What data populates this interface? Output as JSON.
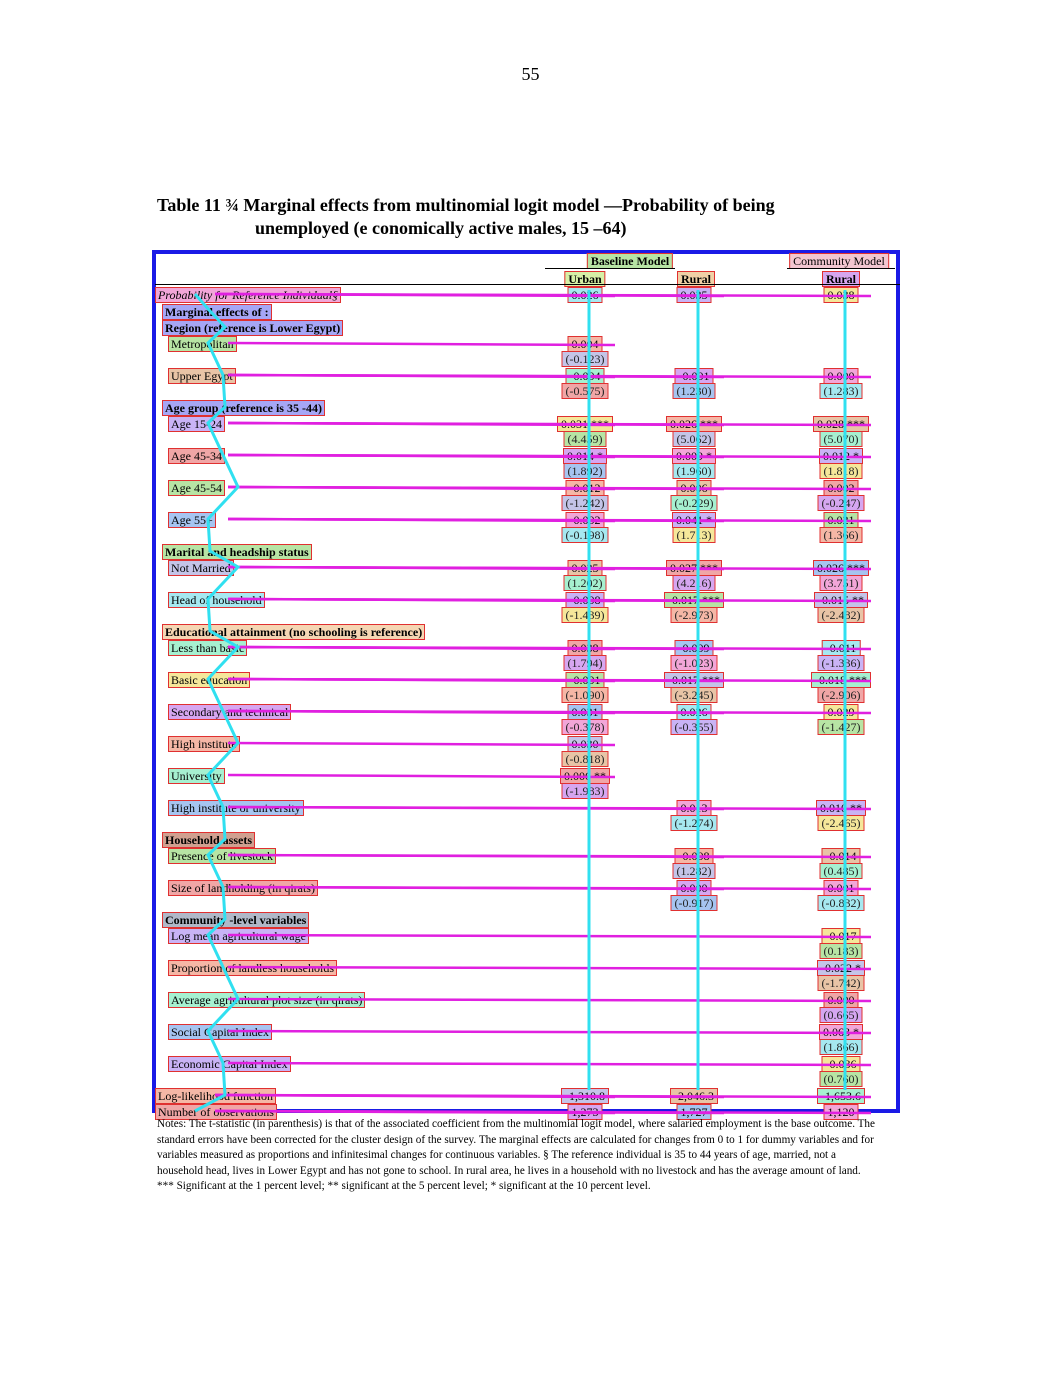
{
  "page_number": "55",
  "caption": {
    "line1": "Table 11 ¾ Marginal effects from multinomial logit model    —Probability of being",
    "line2": "unemployed (e conomically active males, 15  –64)"
  },
  "header": {
    "baseline_model": "Baseline Model",
    "community_model": "Community Model",
    "urban": "Urban",
    "rural": "Rural",
    "rural2": "Rural"
  },
  "rows": [
    {
      "label": "Probability for Reference Individual§",
      "style": "ital",
      "urban": "0.026",
      "rural": "0.035",
      "comm": "0.038"
    },
    {
      "label": "Marginal effects of :",
      "style": "sec-purple"
    },
    {
      "label": "  Region (reference is Lower Egypt)",
      "style": "sec-purple"
    },
    {
      "label": "Metropolitan",
      "indent": true,
      "urban": "0.004",
      "urban_se": "(-0.123)"
    },
    {
      "label": "Upper Egypt",
      "indent": true,
      "urban": "-0.004",
      "urban_se": "(-0.575)",
      "rural": "-0.001",
      "rural_se": "(1.230)",
      "comm": "0.000",
      "comm_se": "(1.283)"
    },
    {
      "label": "Age group (reference is 35  -44)",
      "style": "sec-purple"
    },
    {
      "label": "Age 15-24",
      "indent": true,
      "urban": "0.031  ***",
      "urban_se": "(4.459)",
      "rural": "0.026  ***",
      "rural_se": "(5.062)",
      "comm": "0.028  ***",
      "comm_se": "(5.070)"
    },
    {
      "label": "Age 45-34",
      "indent": true,
      "urban": "0.014  *",
      "urban_se": "(1.892)",
      "rural": "0.009  *",
      "rural_se": "(1.960)",
      "comm": "0.012  *",
      "comm_se": "(1.818)"
    },
    {
      "label": "Age 45-54",
      "indent": true,
      "urban": "-0.012",
      "urban_se": "(-1.242)",
      "rural": "0.006",
      "rural_se": "(-0.229)",
      "comm": "0.002",
      "comm_se": "(-0.247)"
    },
    {
      "label": "Age 55+",
      "indent": true,
      "urban": "-0.002",
      "urban_se": "(-0.198)",
      "rural": "0.041  *",
      "rural_se": "(1.713)",
      "comm": "0.021",
      "comm_se": "(1.366)"
    },
    {
      "label": "Marital and headship status",
      "style": "sec-green"
    },
    {
      "label": "Not Married",
      "indent": true,
      "urban": "0.025",
      "urban_se": "(1.202)",
      "rural": "0.027  ***",
      "rural_se": "(4.216)",
      "comm": "0.026  ***",
      "comm_se": "(3.751)"
    },
    {
      "label": "Head of household",
      "indent": true,
      "urban": "-0.008",
      "urban_se": "(-1.439)",
      "rural": "-0.017  ***",
      "rural_se": "(-2.973)",
      "comm": "-0.015  **",
      "comm_se": "(-2.482)"
    },
    {
      "label": "Educational attainment (no schooling is reference)",
      "style": "sec-orange"
    },
    {
      "label": "Less than basic",
      "indent": true,
      "urban": "0.038",
      "urban_se": "(1.794)",
      "rural": "-0.009",
      "rural_se": "(-1.023)",
      "comm": "-0.011",
      "comm_se": "(-1.336)"
    },
    {
      "label": "Basic education",
      "indent": true,
      "urban": "-0.001",
      "urban_se": "(-1.090)",
      "rural": "-0.017  ***",
      "rural_se": "(-3.245)",
      "comm": "-0.018  ***",
      "comm_se": "(-2.906)"
    },
    {
      "label": "Secondary and technical",
      "indent": true,
      "urban": "0.031",
      "urban_se": "(-0.378)",
      "rural": "0.026",
      "rural_se": "(-0.355)",
      "comm": "0.029",
      "comm_se": "(-1.427)"
    },
    {
      "label": "High institute",
      "indent": true,
      "urban": "0.030",
      "urban_se": "(-0.818)"
    },
    {
      "label": "University",
      "indent": true,
      "urban": "0.006  **",
      "urban_se": "(-1.983)"
    },
    {
      "label": "High institute or university",
      "indent": true,
      "rural": "0.013",
      "rural_se": "(-1.274)",
      "comm": "0.010  **",
      "comm_se": "(-2.465)"
    },
    {
      "label": "Household assets",
      "style": "sec-brown"
    },
    {
      "label": "Presence of livestock",
      "indent": true,
      "rural": "-0.008",
      "rural_se": "(1.282)",
      "comm": "-0.014",
      "comm_se": "(0.485)"
    },
    {
      "label": "Size of landholding (in qirats)",
      "indent": true,
      "rural": "0.000",
      "rural_se": "(-0.917)",
      "comm": "0.001",
      "comm_se": "(-0.832)"
    },
    {
      "label": "Community  -level variables",
      "style": "sec-grey"
    },
    {
      "label": "Log mean agricultural wage",
      "indent": true,
      "comm": "-0.017",
      "comm_se": "(0.183)"
    },
    {
      "label": "Proportion of landless households",
      "indent": true,
      "comm": "-0.022  *",
      "comm_se": "(-1.742)"
    },
    {
      "label": "Average agricultural plot size (in qirats)",
      "indent": true,
      "comm": "0.000",
      "comm_se": "(0.665)"
    },
    {
      "label": "Social Capital Index",
      "indent": true,
      "comm": "0.063  *",
      "comm_se": "(1.866)"
    },
    {
      "label": "Economic Capital Index",
      "indent": true,
      "comm": "-0.036",
      "comm_se": "(0.760)"
    },
    {
      "label": "Log-likelihood function",
      "urban": "-1,310.8",
      "rural": "-2,046.3",
      "comm": "-1,653.6"
    },
    {
      "label": "Number of observations",
      "urban": "1,273",
      "rural": "1,727",
      "comm": "1,120"
    }
  ],
  "notes": "Notes: The t-statistic (in parenthesis) is that of the associated coefficient from the multinomial logit model, where salaried employment is the base outcome. The standard errors have been corrected for the cluster design of the survey. The marginal effects are calculated for changes from 0 to 1 for dummy variables and for variables measured as proportions and infinitesimal changes for continuous variables. § The reference individual is 35 to 44 years of age, married, not a household head, lives in Lower Egypt and has not gone to school. In rural area, he lives in a household with no livestock and has the average amount of land. *** Significant at the 1 percent level; ** significant at the 5 percent level; * significant at the 10 percent level.",
  "colors": {
    "frame": "#1a1ae6",
    "cell_border": "#e03030",
    "overlay_line": "#e020e0",
    "overlay_path": "#30e0f0"
  }
}
